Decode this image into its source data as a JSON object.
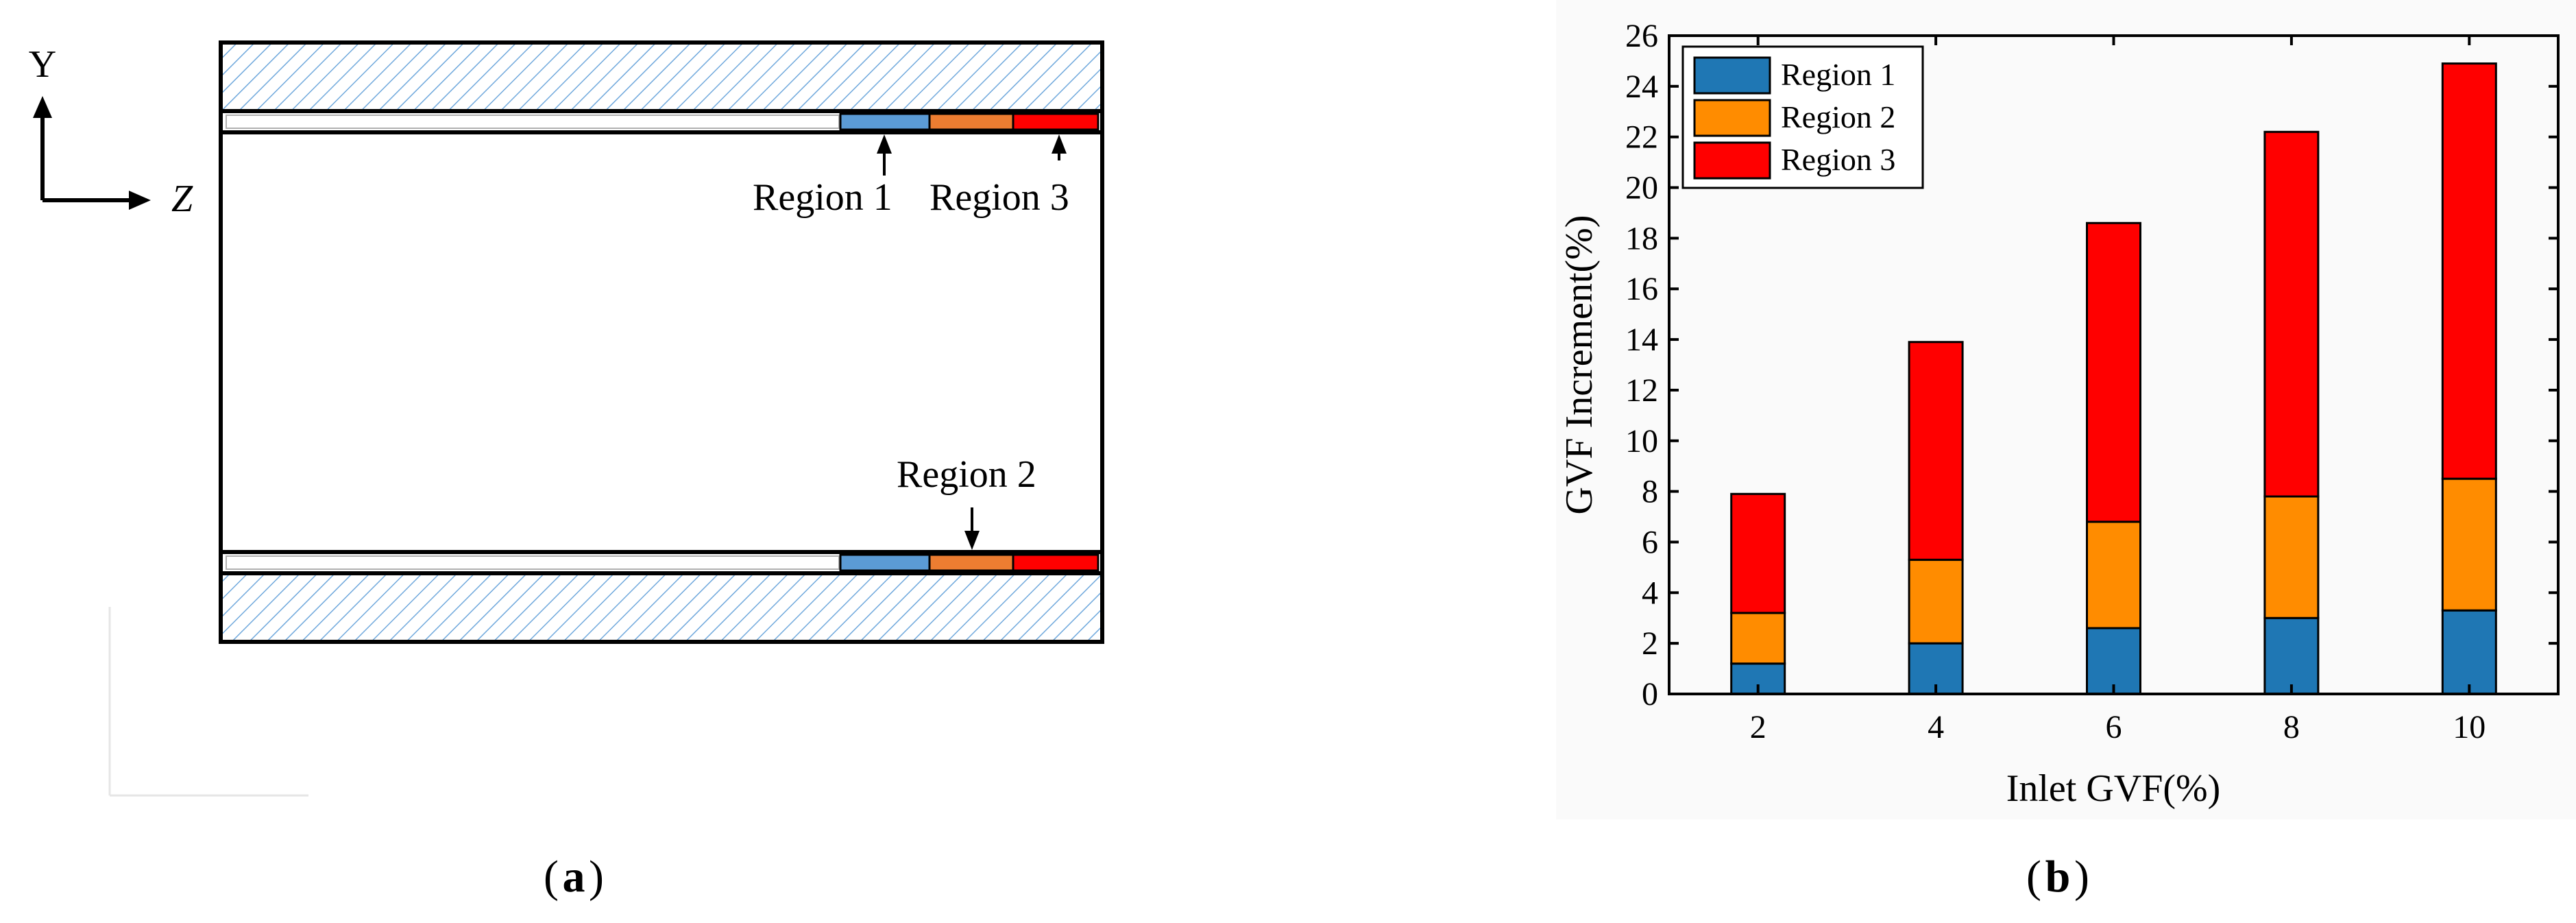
{
  "panel_a": {
    "axis_y": "Y",
    "axis_z": "Z",
    "labels": {
      "region1": "Region 1",
      "region2": "Region 2",
      "region3": "Region 3"
    },
    "caption": "a"
  },
  "panel_b": {
    "caption": "b"
  },
  "colors": {
    "region1_a": "#5b9bd5",
    "region2_a": "#ed7d31",
    "region3_a": "#ff0000",
    "hatch": "#6fa8dc",
    "region1_b": "#1f77b4",
    "region2_b": "#ff8c00",
    "region3_b": "#ff0000"
  },
  "chart_data": {
    "type": "bar",
    "stacked": true,
    "categories": [
      "2",
      "4",
      "6",
      "8",
      "10"
    ],
    "series": [
      {
        "name": "Region 1",
        "values": [
          1.2,
          2.0,
          2.6,
          3.0,
          3.3
        ]
      },
      {
        "name": "Region 2",
        "values": [
          2.0,
          3.3,
          4.2,
          4.8,
          5.2
        ]
      },
      {
        "name": "Region 3",
        "values": [
          4.7,
          8.6,
          11.8,
          14.4,
          16.4
        ]
      }
    ],
    "xlabel": "Inlet GVF(%)",
    "ylabel": "GVF Increment(%)",
    "ylim": [
      0,
      26
    ],
    "yticks": [
      "0",
      "2",
      "4",
      "6",
      "8",
      "10",
      "12",
      "14",
      "16",
      "18",
      "20",
      "22",
      "24",
      "26"
    ],
    "legend": "top-left",
    "grid": false
  }
}
